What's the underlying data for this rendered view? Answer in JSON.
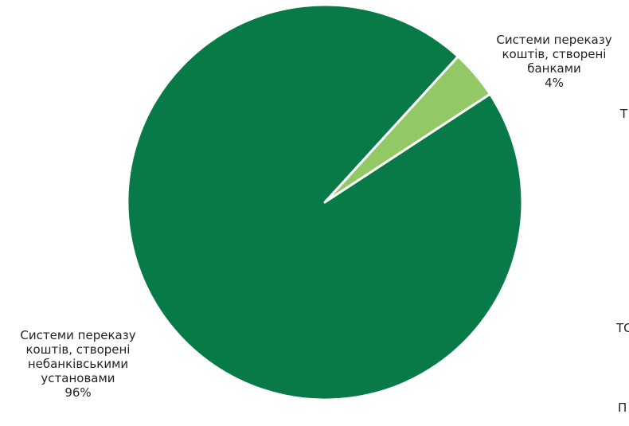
{
  "chart_data": {
    "type": "pie",
    "title": "",
    "slices": [
      {
        "label_lines": [
          "Системи переказу",
          "коштів, створені",
          "небанківськими",
          "установами"
        ],
        "value": 96,
        "value_label": "96%",
        "color": "#087a48"
      },
      {
        "label_lines": [
          "Системи переказу",
          "коштів, створені",
          "банками"
        ],
        "value": 4,
        "value_label": "4%",
        "color": "#92c865"
      }
    ],
    "slice_border_color": "#ffffff",
    "legend": "none"
  },
  "clipped_text": {
    "line_1": "Т",
    "line_2": "ТС",
    "line_3": "П"
  }
}
